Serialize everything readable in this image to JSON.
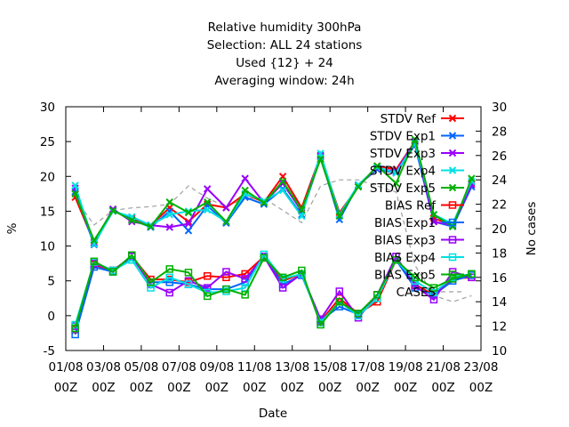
{
  "chart_data": {
    "type": "line",
    "title_lines": [
      "Relative humidity 300hPa",
      "Selection: ALL      24 stations",
      "Used {12} + 24",
      "Averaging window: 24h"
    ],
    "xlabel": "Date",
    "ylabel": "%",
    "y2label": "No cases",
    "ylim": [
      -5,
      30
    ],
    "y2lim": [
      10,
      30
    ],
    "y_ticks": [
      -5,
      0,
      5,
      10,
      15,
      20,
      25,
      30
    ],
    "y2_ticks": [
      10,
      12,
      14,
      16,
      18,
      20,
      22,
      24,
      26,
      28,
      30
    ],
    "x_ticks": [
      {
        "x": 0,
        "line1": "01/08",
        "line2": "00Z"
      },
      {
        "x": 2,
        "line1": "03/08",
        "line2": "00Z"
      },
      {
        "x": 4,
        "line1": "05/08",
        "line2": "00Z"
      },
      {
        "x": 6,
        "line1": "07/08",
        "line2": "00Z"
      },
      {
        "x": 8,
        "line1": "09/08",
        "line2": "00Z"
      },
      {
        "x": 10,
        "line1": "11/08",
        "line2": "00Z"
      },
      {
        "x": 12,
        "line1": "13/08",
        "line2": "00Z"
      },
      {
        "x": 14,
        "line1": "15/08",
        "line2": "00Z"
      },
      {
        "x": 16,
        "line1": "17/08",
        "line2": "00Z"
      },
      {
        "x": 18,
        "line1": "19/08",
        "line2": "00Z"
      },
      {
        "x": 20,
        "line1": "21/08",
        "line2": "00Z"
      },
      {
        "x": 22,
        "line1": "23/08",
        "line2": "00Z"
      }
    ],
    "x_range": [
      0,
      22
    ],
    "x": [
      0.5,
      1.5,
      2.5,
      3.5,
      4.5,
      5.5,
      6.5,
      7.5,
      8.5,
      9.5,
      10.5,
      11.5,
      12.5,
      13.5,
      14.5,
      15.5,
      16.5,
      17.5,
      18.5,
      19.5,
      20.5,
      21.5
    ],
    "legend_position": "top-right",
    "series": [
      {
        "name": "STDV Ref",
        "axis": "y1",
        "color": "#ff0000",
        "marker": "x",
        "values": [
          17.0,
          10.5,
          15.0,
          14.0,
          13.0,
          15.5,
          13.5,
          16.0,
          15.5,
          17.5,
          16.3,
          20.0,
          15.5,
          23.0,
          14.8,
          18.5,
          21.5,
          21.0,
          25.0,
          14.0,
          13.0,
          19.0
        ]
      },
      {
        "name": "STDV Exp1",
        "axis": "y1",
        "color": "#0066ff",
        "marker": "x",
        "values": [
          17.8,
          10.2,
          15.2,
          13.8,
          12.7,
          15.0,
          12.2,
          15.8,
          13.3,
          17.0,
          16.0,
          18.2,
          14.5,
          22.8,
          13.8,
          18.8,
          21.0,
          20.5,
          24.5,
          13.5,
          12.8,
          18.5
        ]
      },
      {
        "name": "STDV Exp3",
        "axis": "y1",
        "color": "#9900ff",
        "marker": "x",
        "values": [
          18.3,
          10.5,
          15.3,
          13.5,
          13.0,
          12.7,
          13.2,
          18.2,
          15.5,
          19.7,
          16.2,
          19.0,
          15.0,
          23.0,
          14.5,
          18.7,
          21.2,
          20.7,
          25.0,
          13.5,
          13.0,
          18.8
        ]
      },
      {
        "name": "STDV Exp4",
        "axis": "y1",
        "color": "#00e0e0",
        "marker": "x",
        "values": [
          18.7,
          10.3,
          15.0,
          14.2,
          13.0,
          14.5,
          15.0,
          15.2,
          13.5,
          17.5,
          16.5,
          18.0,
          14.3,
          23.3,
          14.5,
          18.8,
          21.3,
          20.5,
          24.8,
          14.5,
          13.2,
          19.3
        ]
      },
      {
        "name": "STDV Exp5",
        "axis": "y1",
        "color": "#00b000",
        "marker": "x",
        "values": [
          17.5,
          10.8,
          15.1,
          13.7,
          12.8,
          16.3,
          14.8,
          16.3,
          13.5,
          18.0,
          16.2,
          19.3,
          15.2,
          22.5,
          14.3,
          18.5,
          21.5,
          19.0,
          25.3,
          14.5,
          12.8,
          19.7
        ]
      },
      {
        "name": "BIAS Ref",
        "axis": "y1",
        "color": "#ff0000",
        "marker": "square",
        "values": [
          -2.0,
          7.3,
          6.5,
          8.5,
          5.2,
          5.2,
          4.8,
          5.7,
          5.5,
          6.0,
          8.5,
          5.0,
          6.0,
          -0.8,
          2.5,
          0.3,
          2.0,
          8.0,
          4.5,
          3.0,
          5.3,
          5.5
        ]
      },
      {
        "name": "BIAS Exp1",
        "axis": "y1",
        "color": "#0066ff",
        "marker": "square",
        "values": [
          -2.7,
          7.0,
          6.3,
          8.5,
          4.8,
          4.8,
          4.5,
          3.8,
          3.8,
          4.8,
          8.5,
          4.5,
          5.8,
          -0.7,
          1.3,
          0.2,
          3.0,
          8.0,
          4.0,
          3.0,
          5.0,
          5.8
        ]
      },
      {
        "name": "BIAS Exp3",
        "axis": "y1",
        "color": "#9900ff",
        "marker": "square",
        "values": [
          -1.5,
          7.5,
          6.5,
          8.5,
          4.5,
          3.3,
          5.0,
          4.0,
          6.3,
          5.3,
          8.5,
          4.0,
          6.0,
          -0.5,
          3.5,
          -0.3,
          3.0,
          8.5,
          4.3,
          2.3,
          6.3,
          5.5
        ]
      },
      {
        "name": "BIAS Exp4",
        "axis": "y1",
        "color": "#00e0e0",
        "marker": "square",
        "values": [
          -1.3,
          7.7,
          6.5,
          8.0,
          4.0,
          5.5,
          4.5,
          3.3,
          3.5,
          4.0,
          8.8,
          5.3,
          6.0,
          -1.0,
          2.0,
          0.0,
          2.5,
          8.0,
          5.0,
          3.3,
          5.5,
          6.0
        ]
      },
      {
        "name": "BIAS Exp5",
        "axis": "y1",
        "color": "#00b000",
        "marker": "square",
        "values": [
          -1.8,
          7.8,
          6.3,
          8.7,
          4.8,
          6.7,
          6.2,
          2.8,
          3.8,
          3.0,
          8.3,
          5.5,
          6.5,
          -1.3,
          2.0,
          0.3,
          3.0,
          8.0,
          5.5,
          4.0,
          5.3,
          6.0
        ]
      },
      {
        "name": "CASES",
        "axis": "y2",
        "color": "#a0a0a0",
        "marker": "none",
        "dashed": true,
        "values": [
          22.5,
          20.3,
          21.5,
          21.7,
          21.8,
          22.0,
          23.5,
          22.5,
          21.8,
          22.5,
          22.5,
          21.5,
          20.5,
          23.5,
          24.0,
          24.0,
          23.5,
          23.0,
          17.0,
          14.5,
          14.0,
          14.5
        ]
      }
    ]
  }
}
